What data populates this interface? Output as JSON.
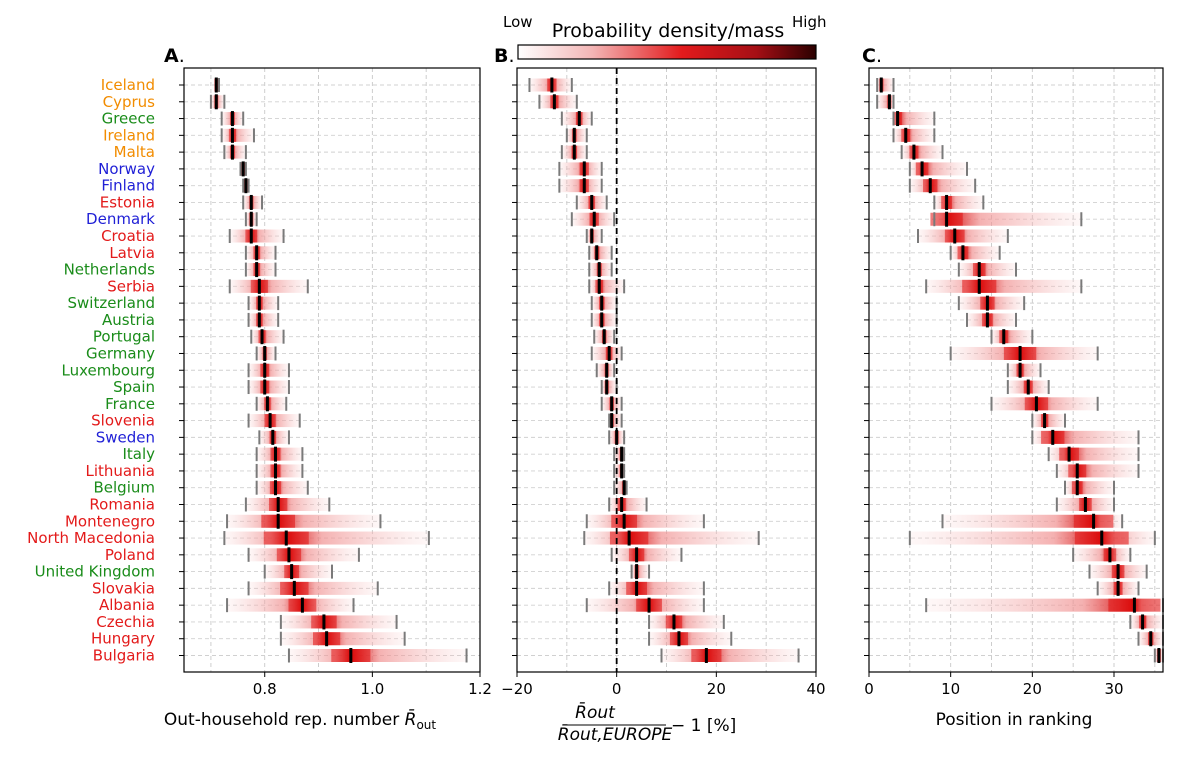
{
  "colorbar": {
    "title": "Probability density/mass",
    "low_label": "Low",
    "high_label": "High",
    "colors": [
      "#ffffff",
      "#f3b5b5",
      "#e31a1c",
      "#a50f15",
      "#2b0000"
    ]
  },
  "group_colors": {
    "orange": "#f28c00",
    "green": "#1a8c1a",
    "blue": "#1f1fd6",
    "red": "#e31a1a"
  },
  "chart_data": [
    {
      "type": "scatter",
      "panel_label": "A",
      "xlabel_text": "Out-household rep. number",
      "xlabel_math": "R̄",
      "xlabel_sub": "out",
      "xlim": [
        0.65,
        1.2
      ],
      "xticks": [
        0.8,
        1.0,
        1.2
      ],
      "xtick_labels": [
        "0.8",
        "1.0",
        "1.2"
      ],
      "countries": [
        "Iceland",
        "Cyprus",
        "Greece",
        "Ireland",
        "Malta",
        "Norway",
        "Finland",
        "Estonia",
        "Denmark",
        "Croatia",
        "Latvia",
        "Netherlands",
        "Serbia",
        "Switzerland",
        "Austria",
        "Portugal",
        "Germany",
        "Luxembourg",
        "Spain",
        "France",
        "Slovenia",
        "Sweden",
        "Italy",
        "Lithuania",
        "Belgium",
        "Romania",
        "Montenegro",
        "North Macedonia",
        "Poland",
        "United Kingdom",
        "Slovakia",
        "Albania",
        "Czechia",
        "Hungary",
        "Bulgaria"
      ],
      "country_groups": [
        "orange",
        "orange",
        "green",
        "orange",
        "orange",
        "blue",
        "blue",
        "red",
        "blue",
        "red",
        "red",
        "green",
        "red",
        "green",
        "green",
        "green",
        "green",
        "green",
        "green",
        "green",
        "red",
        "blue",
        "green",
        "red",
        "green",
        "red",
        "red",
        "red",
        "red",
        "green",
        "red",
        "red",
        "red",
        "red",
        "red"
      ],
      "median": [
        0.71,
        0.71,
        0.74,
        0.74,
        0.74,
        0.76,
        0.765,
        0.775,
        0.775,
        0.775,
        0.785,
        0.785,
        0.79,
        0.79,
        0.79,
        0.795,
        0.8,
        0.8,
        0.8,
        0.805,
        0.81,
        0.815,
        0.82,
        0.82,
        0.82,
        0.825,
        0.825,
        0.84,
        0.845,
        0.85,
        0.855,
        0.87,
        0.91,
        0.915,
        0.96
      ],
      "lower": [
        0.71,
        0.7,
        0.72,
        0.72,
        0.725,
        0.755,
        0.76,
        0.76,
        0.765,
        0.735,
        0.765,
        0.765,
        0.735,
        0.77,
        0.77,
        0.775,
        0.785,
        0.77,
        0.77,
        0.785,
        0.77,
        0.79,
        0.785,
        0.785,
        0.785,
        0.765,
        0.73,
        0.725,
        0.77,
        0.8,
        0.77,
        0.73,
        0.83,
        0.83,
        0.845
      ],
      "upper": [
        0.715,
        0.725,
        0.76,
        0.78,
        0.765,
        0.765,
        0.77,
        0.795,
        0.785,
        0.835,
        0.82,
        0.82,
        0.88,
        0.825,
        0.825,
        0.835,
        0.82,
        0.845,
        0.845,
        0.84,
        0.865,
        0.845,
        0.87,
        0.87,
        0.88,
        0.92,
        1.015,
        1.105,
        0.975,
        0.925,
        1.01,
        0.965,
        1.045,
        1.06,
        1.175
      ]
    },
    {
      "type": "scatter",
      "panel_label": "B",
      "xlabel_num": "R̄out",
      "xlabel_den": "R̄out,EUROPE",
      "xlabel_suffix": "− 1 [%]",
      "xlim": [
        -20,
        40
      ],
      "xticks": [
        -20,
        0,
        20,
        40
      ],
      "xtick_labels": [
        "−20",
        "0",
        "20",
        "40"
      ],
      "reference_x": 0,
      "median": [
        -13,
        -12.5,
        -7.5,
        -8.5,
        -8.5,
        -6.5,
        -6.5,
        -5,
        -4.5,
        -5,
        -4,
        -3.5,
        -3.5,
        -3,
        -3,
        -2.5,
        -1.5,
        -2,
        -2,
        -1,
        -1,
        0,
        1,
        1,
        1.5,
        1,
        1.5,
        2.5,
        4,
        4,
        4,
        6.5,
        11.5,
        12.5,
        18
      ],
      "lower": [
        -17.5,
        -15.5,
        -11,
        -10,
        -11,
        -11.5,
        -11.5,
        -8,
        -9,
        -6,
        -5.5,
        -5.5,
        -5.5,
        -5,
        -5,
        -4.5,
        -5,
        -4,
        -3,
        -3,
        -1.5,
        -1.5,
        -0.5,
        -0.5,
        -0.5,
        -1.5,
        -6,
        -6.5,
        -1,
        3,
        -1.5,
        -6,
        6.5,
        6.5,
        9
      ],
      "upper": [
        -9,
        -8,
        -5,
        -6,
        -6,
        -3,
        -3,
        -2,
        -0.5,
        -3,
        -1,
        -1,
        1.5,
        0,
        0,
        -0.5,
        1,
        -0.5,
        0,
        1,
        1,
        1.5,
        1.5,
        1.5,
        2,
        6,
        17.5,
        28.5,
        13,
        6.5,
        17.5,
        17.5,
        21.5,
        23,
        36.5
      ]
    },
    {
      "type": "scatter",
      "panel_label": "C",
      "xlabel": "Position in ranking",
      "xlim": [
        0,
        36
      ],
      "xticks": [
        0,
        10,
        20,
        30
      ],
      "xtick_labels": [
        "0",
        "10",
        "20",
        "30"
      ],
      "median": [
        1.5,
        2.5,
        3.5,
        4.5,
        5.5,
        6.5,
        7.5,
        9.5,
        9.5,
        10.5,
        11.5,
        13.5,
        13.5,
        14.5,
        14.5,
        16.5,
        18.5,
        18.5,
        19.5,
        20.5,
        21.5,
        22.5,
        24.5,
        25.5,
        25.5,
        26.5,
        27.5,
        28.5,
        29.5,
        30.5,
        30.5,
        32.5,
        33.5,
        34.5,
        35.5
      ],
      "lower": [
        1,
        1,
        3,
        3,
        4,
        5,
        5,
        8,
        8,
        6,
        10,
        11,
        7,
        11,
        12,
        15,
        10,
        17,
        17,
        15,
        20,
        20,
        22,
        23,
        24,
        23,
        9,
        5,
        25,
        27,
        28,
        7,
        32,
        33,
        35
      ],
      "upper": [
        3,
        3,
        8,
        8,
        9,
        12,
        13,
        14,
        26,
        17,
        16,
        18,
        26,
        19,
        18,
        20,
        28,
        21,
        22,
        28,
        24,
        33,
        33,
        33,
        30,
        30,
        31,
        35,
        32,
        34,
        33,
        36,
        36,
        36,
        36
      ]
    }
  ]
}
